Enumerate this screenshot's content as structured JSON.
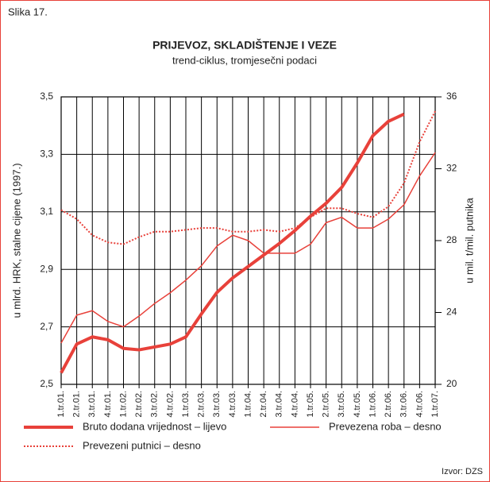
{
  "figure_label": "Slika 17.",
  "source": "Izvor: DZS",
  "chart_data": {
    "type": "line",
    "title": "PRIJEVOZ, SKLADIŠTENJE I VEZE",
    "subtitle": "trend-ciklus, tromjesečni podaci",
    "ylabel": "u mlrd. HRK, stalne cijene (1997.)",
    "y2label": "u mil. t/mil. putnika",
    "categories": [
      "1.tr.01.",
      "2.tr.01.",
      "3.tr.01.",
      "4.tr.01.",
      "1.tr.02.",
      "2.tr.02.",
      "3.tr.02.",
      "4.tr.02.",
      "1.tr.03.",
      "2.tr.03.",
      "3.tr.03.",
      "4.tr.03.",
      "1.tr.04.",
      "2.tr.04.",
      "3.tr.04.",
      "4.tr.04.",
      "1.tr.05.",
      "2.tr.05.",
      "3.tr.05.",
      "4.tr.05.",
      "1.tr.06.",
      "2.tr.06.",
      "3.tr.06.",
      "4.tr.06.",
      "1.tr.07."
    ],
    "ylim": [
      2.5,
      3.5
    ],
    "yticks": [
      {
        "value": 2.5,
        "label": "2,5"
      },
      {
        "value": 2.7,
        "label": "2,7"
      },
      {
        "value": 2.9,
        "label": "2,9"
      },
      {
        "value": 3.1,
        "label": "3,1"
      },
      {
        "value": 3.3,
        "label": "3,3"
      },
      {
        "value": 3.5,
        "label": "3,5"
      }
    ],
    "y2lim": [
      20,
      36
    ],
    "y2ticks": [
      20,
      24,
      28,
      32,
      36
    ],
    "grid": true,
    "series": [
      {
        "name": "Bruto dodana vrijednost – lijevo",
        "color": "#e8413a",
        "width": 4,
        "dash": "solid",
        "values": [
          2.54,
          2.64,
          2.665,
          2.655,
          2.625,
          2.62,
          2.63,
          2.64,
          2.665,
          2.745,
          2.82,
          2.87,
          2.91,
          2.95,
          2.99,
          3.035,
          3.085,
          3.13,
          3.185,
          3.27,
          3.365,
          3.415,
          3.44,
          null,
          null
        ]
      },
      {
        "name": "Prevezena roba – desno",
        "color": "#e8413a",
        "width": 1.5,
        "dash": "solid",
        "axis": "y2",
        "values": [
          22.3,
          23.85,
          24.1,
          23.5,
          23.2,
          23.8,
          24.5,
          25.1,
          25.8,
          26.6,
          27.7,
          28.3,
          28.0,
          27.3,
          27.3,
          27.3,
          27.8,
          29.0,
          29.3,
          28.7,
          28.7,
          29.2,
          30.0,
          31.6,
          32.9
        ]
      },
      {
        "name": "Prevezeni putnici – desno",
        "color": "#e8413a",
        "width": 2,
        "dash": "dotted",
        "axis": "y2",
        "values": [
          29.7,
          29.2,
          28.3,
          27.9,
          27.8,
          28.2,
          28.5,
          28.5,
          28.6,
          28.7,
          28.7,
          28.5,
          28.5,
          28.6,
          28.5,
          28.7,
          29.3,
          29.8,
          29.8,
          29.5,
          29.3,
          29.9,
          31.2,
          33.5,
          35.2
        ]
      }
    ]
  }
}
